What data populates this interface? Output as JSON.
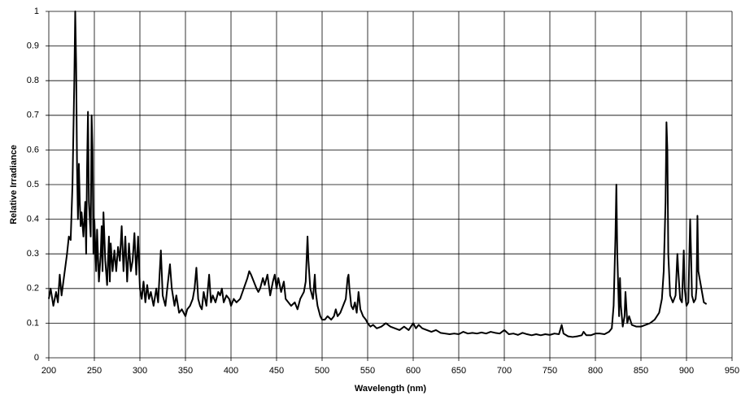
{
  "chart_data": {
    "type": "line",
    "x_label": "Wavelength  (nm)",
    "y_label": "Relative Irradiance",
    "xlim": [
      200,
      950
    ],
    "ylim": [
      0,
      1
    ],
    "xticks": [
      200,
      250,
      300,
      350,
      400,
      450,
      500,
      550,
      600,
      650,
      700,
      750,
      800,
      850,
      900,
      950
    ],
    "yticks": [
      0,
      0.1,
      0.2,
      0.3,
      0.4,
      0.5,
      0.6,
      0.7,
      0.8,
      0.9,
      1
    ],
    "grid": true,
    "series": [
      {
        "color": "#000000",
        "x": [
          200,
          202,
          205,
          208,
          210,
          212,
          214,
          216,
          218,
          220,
          222,
          224,
          226,
          228,
          229,
          230,
          231,
          232,
          233,
          234,
          235,
          236,
          238,
          240,
          241,
          242,
          243,
          244,
          246,
          247,
          248,
          249,
          250,
          252,
          253,
          255,
          257,
          258,
          259,
          260,
          262,
          264,
          266,
          267,
          268,
          270,
          272,
          274,
          276,
          278,
          280,
          282,
          284,
          286,
          288,
          290,
          292,
          294,
          296,
          298,
          300,
          302,
          304,
          306,
          308,
          310,
          312,
          315,
          318,
          320,
          323,
          325,
          328,
          330,
          333,
          335,
          338,
          340,
          343,
          346,
          350,
          352,
          355,
          358,
          360,
          362,
          364,
          366,
          368,
          370,
          373,
          376,
          378,
          380,
          383,
          386,
          388,
          390,
          392,
          395,
          398,
          400,
          403,
          406,
          410,
          414,
          418,
          420,
          422,
          425,
          428,
          430,
          432,
          435,
          437,
          440,
          443,
          446,
          448,
          450,
          452,
          455,
          458,
          460,
          463,
          466,
          470,
          473,
          476,
          480,
          482,
          484,
          485,
          487,
          489,
          490,
          492,
          493,
          495,
          498,
          500,
          503,
          506,
          510,
          513,
          515,
          517,
          520,
          523,
          526,
          528,
          529,
          530,
          532,
          534,
          536,
          538,
          540,
          542,
          545,
          548,
          550,
          553,
          556,
          560,
          565,
          570,
          575,
          580,
          585,
          590,
          595,
          600,
          603,
          606,
          610,
          615,
          620,
          625,
          630,
          635,
          640,
          645,
          650,
          655,
          660,
          665,
          670,
          675,
          680,
          685,
          690,
          695,
          700,
          705,
          710,
          715,
          720,
          725,
          730,
          735,
          740,
          745,
          750,
          755,
          760,
          763,
          765,
          770,
          775,
          780,
          785,
          787,
          790,
          795,
          800,
          805,
          810,
          815,
          818,
          820,
          822,
          823,
          824,
          826,
          827,
          828,
          830,
          832,
          833,
          835,
          837,
          840,
          845,
          850,
          855,
          860,
          865,
          870,
          873,
          875,
          877,
          878,
          879,
          880,
          882,
          885,
          888,
          890,
          891,
          893,
          895,
          897,
          898,
          900,
          902,
          904,
          905,
          906,
          908,
          910,
          911,
          912,
          913,
          915,
          917,
          919,
          922
        ],
        "values": [
          0.17,
          0.2,
          0.15,
          0.19,
          0.16,
          0.24,
          0.18,
          0.22,
          0.26,
          0.3,
          0.35,
          0.34,
          0.5,
          0.8,
          1.0,
          0.85,
          0.55,
          0.4,
          0.56,
          0.45,
          0.38,
          0.42,
          0.35,
          0.45,
          0.3,
          0.55,
          0.71,
          0.45,
          0.35,
          0.7,
          0.6,
          0.3,
          0.4,
          0.25,
          0.37,
          0.22,
          0.3,
          0.38,
          0.25,
          0.42,
          0.28,
          0.21,
          0.35,
          0.22,
          0.33,
          0.25,
          0.31,
          0.25,
          0.32,
          0.28,
          0.38,
          0.25,
          0.35,
          0.22,
          0.33,
          0.25,
          0.28,
          0.36,
          0.24,
          0.35,
          0.2,
          0.17,
          0.22,
          0.16,
          0.21,
          0.17,
          0.19,
          0.15,
          0.2,
          0.16,
          0.31,
          0.18,
          0.15,
          0.2,
          0.27,
          0.2,
          0.15,
          0.18,
          0.13,
          0.14,
          0.12,
          0.14,
          0.15,
          0.17,
          0.2,
          0.26,
          0.17,
          0.15,
          0.14,
          0.19,
          0.15,
          0.24,
          0.16,
          0.18,
          0.16,
          0.19,
          0.18,
          0.2,
          0.16,
          0.18,
          0.17,
          0.15,
          0.17,
          0.16,
          0.17,
          0.2,
          0.23,
          0.25,
          0.24,
          0.22,
          0.2,
          0.19,
          0.2,
          0.23,
          0.21,
          0.24,
          0.18,
          0.22,
          0.24,
          0.2,
          0.23,
          0.19,
          0.22,
          0.17,
          0.16,
          0.15,
          0.16,
          0.14,
          0.17,
          0.19,
          0.22,
          0.35,
          0.28,
          0.2,
          0.18,
          0.17,
          0.24,
          0.19,
          0.15,
          0.12,
          0.11,
          0.11,
          0.12,
          0.11,
          0.12,
          0.14,
          0.12,
          0.13,
          0.15,
          0.17,
          0.23,
          0.24,
          0.2,
          0.15,
          0.14,
          0.16,
          0.13,
          0.19,
          0.14,
          0.12,
          0.11,
          0.1,
          0.09,
          0.095,
          0.085,
          0.09,
          0.1,
          0.09,
          0.085,
          0.08,
          0.09,
          0.08,
          0.1,
          0.085,
          0.095,
          0.085,
          0.08,
          0.075,
          0.08,
          0.072,
          0.07,
          0.068,
          0.07,
          0.068,
          0.075,
          0.07,
          0.072,
          0.07,
          0.073,
          0.07,
          0.075,
          0.072,
          0.07,
          0.08,
          0.068,
          0.07,
          0.066,
          0.072,
          0.068,
          0.065,
          0.068,
          0.065,
          0.068,
          0.066,
          0.07,
          0.068,
          0.095,
          0.07,
          0.062,
          0.06,
          0.062,
          0.065,
          0.075,
          0.065,
          0.065,
          0.07,
          0.07,
          0.068,
          0.075,
          0.085,
          0.15,
          0.35,
          0.5,
          0.3,
          0.12,
          0.23,
          0.15,
          0.09,
          0.12,
          0.19,
          0.1,
          0.12,
          0.095,
          0.09,
          0.09,
          0.095,
          0.1,
          0.11,
          0.13,
          0.17,
          0.25,
          0.45,
          0.68,
          0.6,
          0.3,
          0.18,
          0.16,
          0.18,
          0.3,
          0.25,
          0.17,
          0.16,
          0.31,
          0.2,
          0.15,
          0.16,
          0.4,
          0.3,
          0.18,
          0.16,
          0.17,
          0.2,
          0.41,
          0.25,
          0.22,
          0.19,
          0.16,
          0.155
        ]
      }
    ]
  }
}
